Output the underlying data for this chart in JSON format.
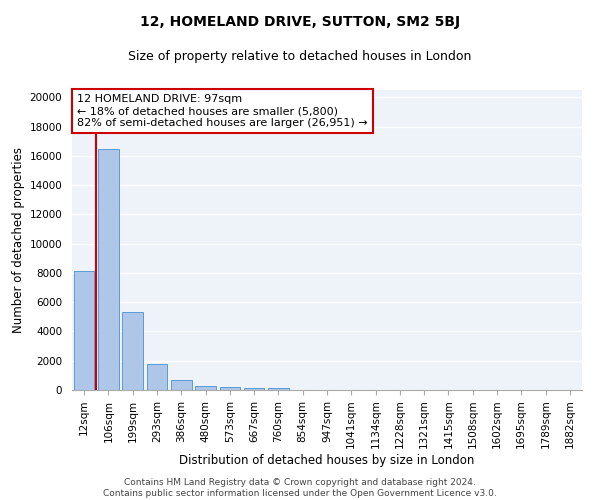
{
  "title": "12, HOMELAND DRIVE, SUTTON, SM2 5BJ",
  "subtitle": "Size of property relative to detached houses in London",
  "xlabel": "Distribution of detached houses by size in London",
  "ylabel": "Number of detached properties",
  "annotation_line1": "12 HOMELAND DRIVE: 97sqm",
  "annotation_line2": "← 18% of detached houses are smaller (5,800)",
  "annotation_line3": "82% of semi-detached houses are larger (26,951) →",
  "footer_line1": "Contains HM Land Registry data © Crown copyright and database right 2024.",
  "footer_line2": "Contains public sector information licensed under the Open Government Licence v3.0.",
  "bar_labels": [
    "12sqm",
    "106sqm",
    "199sqm",
    "293sqm",
    "386sqm",
    "480sqm",
    "573sqm",
    "667sqm",
    "760sqm",
    "854sqm",
    "947sqm",
    "1041sqm",
    "1134sqm",
    "1228sqm",
    "1321sqm",
    "1415sqm",
    "1508sqm",
    "1602sqm",
    "1695sqm",
    "1789sqm",
    "1882sqm"
  ],
  "bar_values": [
    8100,
    16500,
    5300,
    1750,
    650,
    280,
    190,
    150,
    130,
    0,
    0,
    0,
    0,
    0,
    0,
    0,
    0,
    0,
    0,
    0,
    0
  ],
  "bar_color": "#aec6e8",
  "bar_edge_color": "#5b9bd5",
  "vline_color": "#cc0000",
  "annotation_box_color": "#cc0000",
  "ylim": [
    0,
    20500
  ],
  "yticks": [
    0,
    2000,
    4000,
    6000,
    8000,
    10000,
    12000,
    14000,
    16000,
    18000,
    20000
  ],
  "background_color": "#eef2f9",
  "grid_color": "#ffffff",
  "title_fontsize": 10,
  "subtitle_fontsize": 9,
  "axis_label_fontsize": 8.5,
  "tick_fontsize": 7.5,
  "annotation_fontsize": 8,
  "footer_fontsize": 6.5
}
